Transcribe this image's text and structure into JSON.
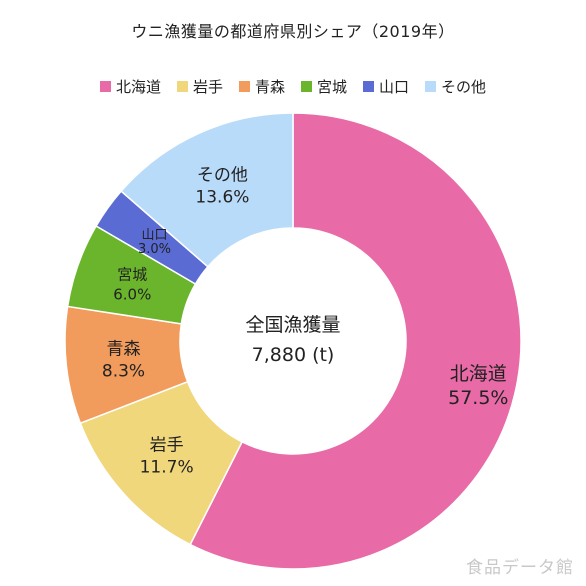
{
  "chart_data": {
    "type": "pie",
    "title": "ウニ漁獲量の都道府県別シェア（2019年）",
    "center_label": {
      "line1": "全国漁獲量",
      "line2": "7,880 (t)"
    },
    "legend_position": "top",
    "slices": [
      {
        "name": "北海道",
        "value": 57.5,
        "label": "57.5%",
        "color": "#e86aa6"
      },
      {
        "name": "岩手",
        "value": 11.7,
        "label": "11.7%",
        "color": "#f0d77c"
      },
      {
        "name": "青森",
        "value": 8.3,
        "label": "8.3%",
        "color": "#f19c5c"
      },
      {
        "name": "宮城",
        "value": 6.0,
        "label": "6.0%",
        "color": "#6ab52c"
      },
      {
        "name": "山口",
        "value": 3.0,
        "label": "3.0%",
        "color": "#5a6bd4"
      },
      {
        "name": "その他",
        "value": 13.6,
        "label": "13.6%",
        "color": "#b9dbfa"
      }
    ]
  },
  "watermark": "食品データ館"
}
